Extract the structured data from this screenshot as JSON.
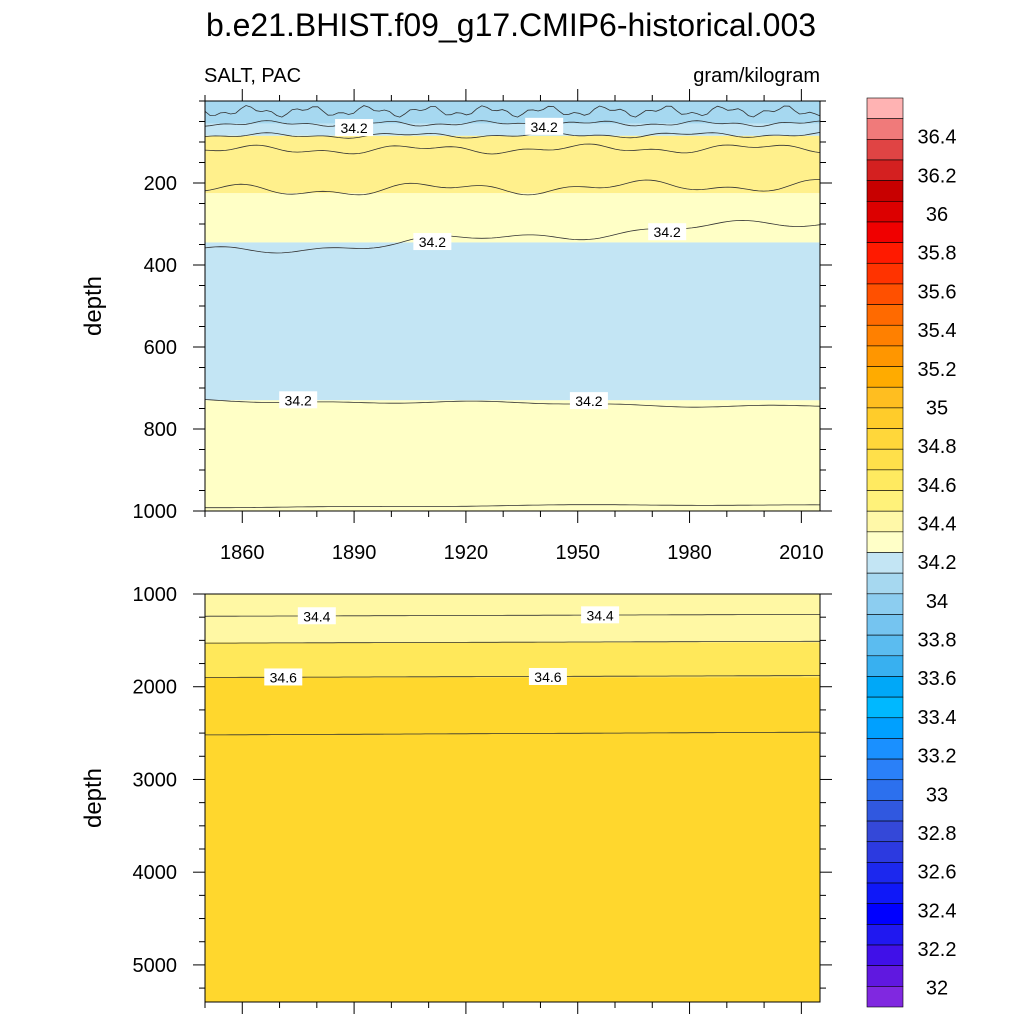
{
  "chart_data": {
    "type": "contour",
    "title": "b.e21.BHIST.f09_g17.CMIP6-historical.003",
    "left_subtitle": "SALT, PAC",
    "right_subtitle": "gram/kilogram",
    "ylabel": "depth",
    "x_ticks": [
      "1860",
      "1890",
      "1920",
      "1950",
      "1980",
      "2010"
    ],
    "x_tick_values": [
      1860,
      1890,
      1920,
      1950,
      1980,
      2010
    ],
    "xlim": [
      1850,
      2015
    ],
    "panels": [
      {
        "name": "upper",
        "ylim": [
          1000,
          0
        ],
        "y_ticks": [
          "200",
          "400",
          "600",
          "800",
          "1000"
        ],
        "y_tick_values": [
          200,
          400,
          600,
          800,
          1000
        ],
        "bands": [
          {
            "from_depth": 0,
            "to_depth": 55,
            "color": "#a6d8f0"
          },
          {
            "from_depth": 55,
            "to_depth": 85,
            "color": "#c3e5f4"
          },
          {
            "from_depth": 85,
            "to_depth": 225,
            "color": "#fff08c"
          },
          {
            "from_depth": 225,
            "to_depth": 345,
            "color": "#ffffc6"
          },
          {
            "from_depth": 345,
            "to_depth": 730,
            "color": "#c3e5f4"
          },
          {
            "from_depth": 730,
            "to_depth": 1000,
            "color": "#ffffc6"
          }
        ],
        "contours": [
          {
            "d_start": 25,
            "d_end": 25,
            "amp": 6,
            "freq": 31
          },
          {
            "d_start": 55,
            "d_end": 55,
            "amp": 3,
            "freq": 17
          },
          {
            "d_start": 85,
            "d_end": 82,
            "amp": 3,
            "freq": 13
          },
          {
            "d_start": 120,
            "d_end": 115,
            "amp": 5,
            "freq": 11
          },
          {
            "d_start": 220,
            "d_end": 205,
            "amp": 7,
            "freq": 9
          },
          {
            "d_start": 370,
            "d_end": 295,
            "amp": 6,
            "freq": 7
          },
          {
            "d_start": 730,
            "d_end": 745,
            "amp": 2,
            "freq": 5
          },
          {
            "d_start": 990,
            "d_end": 985,
            "amp": 1,
            "freq": 3
          }
        ],
        "contour_labels": [
          {
            "text": "34.2",
            "year": 1890,
            "depth": 66
          },
          {
            "text": "34.2",
            "year": 1941,
            "depth": 63
          },
          {
            "text": "34.2",
            "year": 1911,
            "depth": 344
          },
          {
            "text": "34.2",
            "year": 1974,
            "depth": 320
          },
          {
            "text": "34.2",
            "year": 1875,
            "depth": 730
          },
          {
            "text": "34.2",
            "year": 1953,
            "depth": 732
          }
        ]
      },
      {
        "name": "lower",
        "ylim": [
          5400,
          1000
        ],
        "y_ticks": [
          "1000",
          "2000",
          "3000",
          "4000",
          "5000"
        ],
        "y_tick_values": [
          1000,
          2000,
          3000,
          4000,
          5000
        ],
        "bands": [
          {
            "from_depth": 1000,
            "to_depth": 1520,
            "color": "#fff8a4"
          },
          {
            "from_depth": 1520,
            "to_depth": 1900,
            "color": "#ffe85a"
          },
          {
            "from_depth": 1900,
            "to_depth": 5400,
            "color": "#ffd72d"
          }
        ],
        "contours": [
          {
            "d_start": 1240,
            "d_end": 1220,
            "amp": 0,
            "freq": 1
          },
          {
            "d_start": 1530,
            "d_end": 1510,
            "amp": 0,
            "freq": 1
          },
          {
            "d_start": 1900,
            "d_end": 1880,
            "amp": 0,
            "freq": 1
          },
          {
            "d_start": 2520,
            "d_end": 2490,
            "amp": 0,
            "freq": 1
          }
        ],
        "contour_labels": [
          {
            "text": "34.4",
            "year": 1880,
            "depth": 1240
          },
          {
            "text": "34.4",
            "year": 1956,
            "depth": 1230
          },
          {
            "text": "34.6",
            "year": 1871,
            "depth": 1900
          },
          {
            "text": "34.6",
            "year": 1942,
            "depth": 1895
          }
        ]
      }
    ],
    "colorbar": {
      "labels": [
        "36.4",
        "36.2",
        "36",
        "35.8",
        "35.6",
        "35.4",
        "35.2",
        "35",
        "34.8",
        "34.6",
        "34.4",
        "34.2",
        "34",
        "33.8",
        "33.6",
        "33.4",
        "33.2",
        "33",
        "32.8",
        "32.6",
        "32.4",
        "32.2",
        "32"
      ],
      "colors": [
        "#ffb3b3",
        "#f07a7a",
        "#e04444",
        "#d42020",
        "#c80000",
        "#dc0000",
        "#f00000",
        "#ff1a00",
        "#ff3300",
        "#ff5000",
        "#ff6a00",
        "#ff8000",
        "#ff9600",
        "#ffab00",
        "#ffbe20",
        "#ffcc2a",
        "#ffd73a",
        "#ffe04a",
        "#ffea60",
        "#fff27a",
        "#fff8a8",
        "#ffffc8",
        "#c3e5f4",
        "#a6d8f0",
        "#8ccdf0",
        "#75c4f0",
        "#5bbcf0",
        "#38b0f0",
        "#00a8f8",
        "#00b8ff",
        "#00a0ff",
        "#1a90ff",
        "#2a80f8",
        "#2c70ee",
        "#3058e0",
        "#3448d8",
        "#2c3ae0",
        "#1c28ee",
        "#0f18f8",
        "#0000ff",
        "#2018f0",
        "#4010e8",
        "#6018e0",
        "#8028e0"
      ]
    }
  }
}
